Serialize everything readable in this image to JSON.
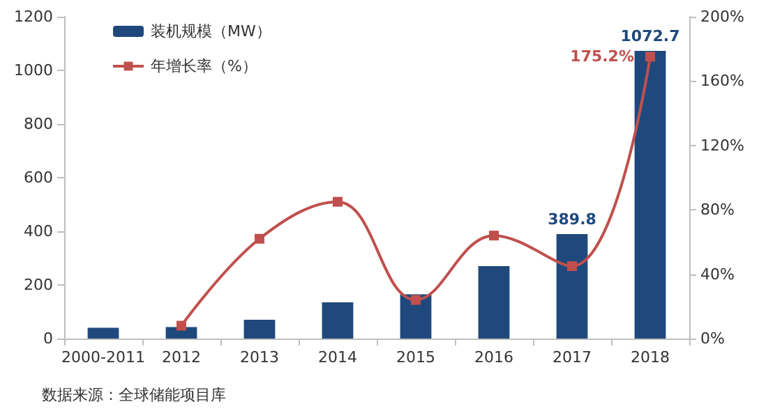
{
  "chart_data": {
    "type": "bar",
    "categories": [
      "2000-2011",
      "2012",
      "2013",
      "2014",
      "2015",
      "2016",
      "2017",
      "2018"
    ],
    "series": [
      {
        "name": "装机规模（MW）",
        "color": "#1f497d",
        "values": [
          40,
          43,
          70,
          135,
          165,
          270,
          389.8,
          1072.7
        ],
        "value_labels": [
          null,
          null,
          null,
          null,
          null,
          null,
          "389.8",
          "1072.7"
        ]
      },
      {
        "name": "年增长率（%）",
        "type": "line",
        "axis": "y2",
        "color": "#c0504d",
        "marker": "square",
        "values": [
          null,
          8,
          62,
          85,
          24,
          64,
          45,
          175.2
        ],
        "value_labels": [
          null,
          null,
          null,
          null,
          null,
          null,
          null,
          "175.2%"
        ]
      }
    ],
    "ylim": [
      0,
      1200
    ],
    "yticks": [
      0,
      200,
      400,
      600,
      800,
      1000,
      1200
    ],
    "y2lim": [
      0,
      200
    ],
    "y2ticks": [
      {
        "value": 0,
        "label": "0%"
      },
      {
        "value": 40,
        "label": "40%"
      },
      {
        "value": 80,
        "label": "80%"
      },
      {
        "value": 120,
        "label": "120%"
      },
      {
        "value": 160,
        "label": "160%"
      },
      {
        "value": 200,
        "label": "200%"
      }
    ],
    "grid": false,
    "legend": "top left",
    "annotations": [
      "数据来源：全球储能项目库"
    ]
  }
}
